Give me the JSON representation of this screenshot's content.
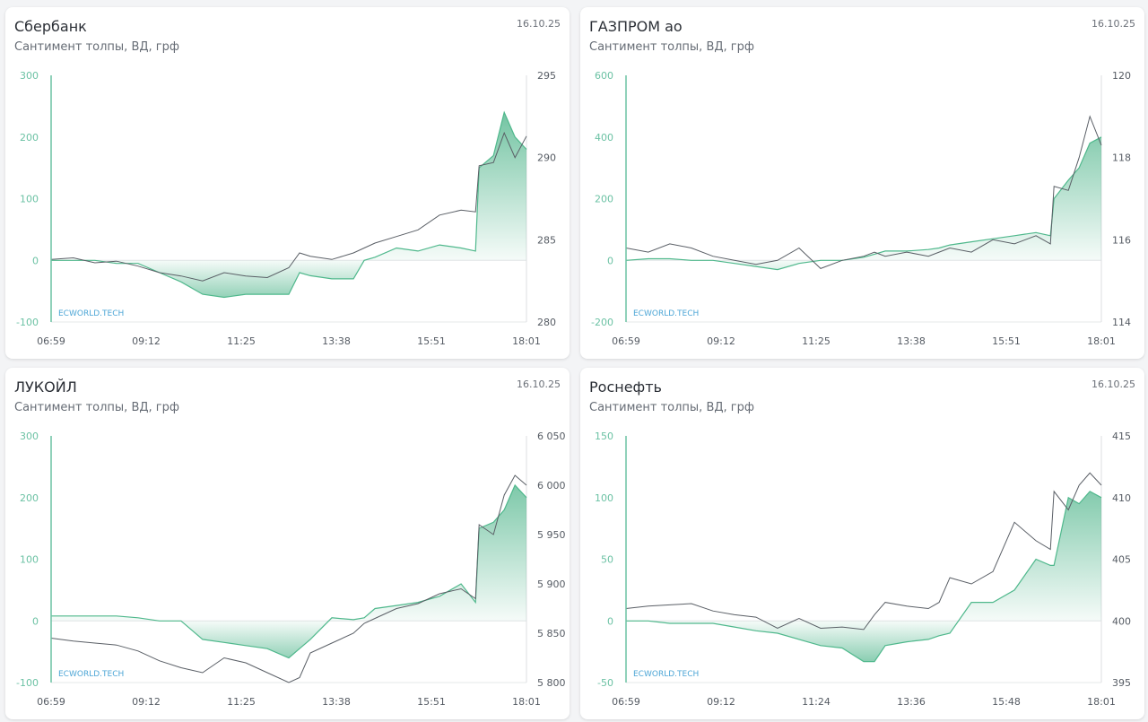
{
  "watermark": "ECWORLD.TECH",
  "colors": {
    "sentiment": "#4fb88c",
    "price": "#5a5f66",
    "left_ticks": "#6cc2a4",
    "right_ticks": "#555b63",
    "watermark": "#4da6d6"
  },
  "chart_data": [
    {
      "type": "line",
      "title": "Сбербанк",
      "subtitle": "Сантимент толпы, ВД, грф",
      "date": "16.10.25",
      "x_ticks": [
        "06:59",
        "09:12",
        "11:25",
        "13:38",
        "15:51",
        "18:01"
      ],
      "y_left": {
        "range": [
          -100,
          300
        ],
        "ticks": [
          "-100",
          "0",
          "100",
          "200",
          "300"
        ],
        "tick_values": [
          -100,
          0,
          100,
          200,
          300
        ]
      },
      "y_right": {
        "range": [
          280,
          295
        ],
        "ticks": [
          "280",
          "285",
          "290",
          "295"
        ],
        "tick_values": [
          280,
          285,
          290,
          295
        ]
      },
      "x": [
        "06:59",
        "07:30",
        "08:00",
        "08:30",
        "09:00",
        "09:30",
        "10:00",
        "10:30",
        "11:00",
        "11:30",
        "12:00",
        "12:30",
        "12:45",
        "13:00",
        "13:30",
        "14:00",
        "14:15",
        "14:30",
        "15:00",
        "15:30",
        "16:00",
        "16:30",
        "16:50",
        "16:55",
        "17:15",
        "17:30",
        "17:45",
        "18:01"
      ],
      "series": [
        {
          "name": "sentiment",
          "axis": "left",
          "values": [
            0,
            0,
            0,
            -5,
            -5,
            -20,
            -35,
            -55,
            -60,
            -55,
            -55,
            -55,
            -20,
            -25,
            -30,
            -30,
            0,
            5,
            20,
            15,
            25,
            20,
            15,
            150,
            170,
            240,
            200,
            180
          ]
        },
        {
          "name": "price",
          "axis": "right",
          "values": [
            283.8,
            283.9,
            283.6,
            283.7,
            283.4,
            283.0,
            282.8,
            282.5,
            283.0,
            282.8,
            282.7,
            283.3,
            284.2,
            284.0,
            283.8,
            284.2,
            284.5,
            284.8,
            285.2,
            285.6,
            286.5,
            286.8,
            286.7,
            289.5,
            289.7,
            291.5,
            290.0,
            291.3
          ]
        }
      ]
    },
    {
      "type": "line",
      "title": "ГАЗПРОМ ао",
      "subtitle": "Сантимент толпы, ВД, грф",
      "date": "16.10.25",
      "x_ticks": [
        "06:59",
        "09:12",
        "11:25",
        "13:38",
        "15:51",
        "18:01"
      ],
      "y_left": {
        "range": [
          -200,
          600
        ],
        "ticks": [
          "-200",
          "0",
          "200",
          "400",
          "600"
        ],
        "tick_values": [
          -200,
          0,
          200,
          400,
          600
        ]
      },
      "y_right": {
        "range": [
          114,
          120
        ],
        "ticks": [
          "114",
          "116",
          "118",
          "120"
        ],
        "tick_values": [
          114,
          116,
          118,
          120
        ]
      },
      "x": [
        "06:59",
        "07:30",
        "08:00",
        "08:30",
        "09:00",
        "09:30",
        "10:00",
        "10:30",
        "11:00",
        "11:30",
        "12:00",
        "12:30",
        "12:45",
        "13:00",
        "13:30",
        "14:00",
        "14:15",
        "14:30",
        "15:00",
        "15:30",
        "16:00",
        "16:30",
        "16:50",
        "16:55",
        "17:15",
        "17:30",
        "17:45",
        "18:01"
      ],
      "series": [
        {
          "name": "sentiment",
          "axis": "left",
          "values": [
            0,
            5,
            5,
            0,
            0,
            -10,
            -20,
            -30,
            -10,
            0,
            0,
            10,
            20,
            30,
            30,
            35,
            40,
            50,
            60,
            70,
            80,
            90,
            80,
            200,
            260,
            300,
            380,
            400
          ]
        },
        {
          "name": "price",
          "axis": "right",
          "values": [
            115.8,
            115.7,
            115.9,
            115.8,
            115.6,
            115.5,
            115.4,
            115.5,
            115.8,
            115.3,
            115.5,
            115.6,
            115.7,
            115.6,
            115.7,
            115.6,
            115.7,
            115.8,
            115.7,
            116.0,
            115.9,
            116.1,
            115.9,
            117.3,
            117.2,
            118.0,
            119.0,
            118.3
          ]
        }
      ]
    },
    {
      "type": "line",
      "title": "ЛУКОЙЛ",
      "subtitle": "Сантимент толпы, ВД, грф",
      "date": "16.10.25",
      "x_ticks": [
        "06:59",
        "09:12",
        "11:25",
        "13:38",
        "15:51",
        "18:01"
      ],
      "y_left": {
        "range": [
          -100,
          300
        ],
        "ticks": [
          "-100",
          "0",
          "100",
          "200",
          "300"
        ],
        "tick_values": [
          -100,
          0,
          100,
          200,
          300
        ]
      },
      "y_right": {
        "range": [
          5800,
          6050
        ],
        "ticks": [
          "5 800",
          "5 850",
          "5 900",
          "5 950",
          "6 000",
          "6 050"
        ],
        "tick_values": [
          5800,
          5850,
          5900,
          5950,
          6000,
          6050
        ]
      },
      "x": [
        "06:59",
        "07:30",
        "08:00",
        "08:30",
        "09:00",
        "09:30",
        "10:00",
        "10:30",
        "11:00",
        "11:30",
        "12:00",
        "12:30",
        "12:45",
        "13:00",
        "13:30",
        "14:00",
        "14:15",
        "14:30",
        "15:00",
        "15:30",
        "16:00",
        "16:30",
        "16:50",
        "16:55",
        "17:15",
        "17:30",
        "17:45",
        "18:01"
      ],
      "series": [
        {
          "name": "sentiment",
          "axis": "left",
          "values": [
            8,
            8,
            8,
            8,
            5,
            0,
            0,
            -30,
            -35,
            -40,
            -45,
            -60,
            -45,
            -30,
            5,
            2,
            5,
            20,
            25,
            30,
            40,
            60,
            30,
            150,
            160,
            180,
            220,
            200
          ]
        },
        {
          "name": "price",
          "axis": "right",
          "values": [
            5845,
            5842,
            5840,
            5838,
            5832,
            5822,
            5815,
            5810,
            5825,
            5820,
            5810,
            5800,
            5805,
            5830,
            5840,
            5850,
            5860,
            5865,
            5875,
            5880,
            5890,
            5895,
            5885,
            5960,
            5950,
            5990,
            6010,
            6000
          ]
        }
      ]
    },
    {
      "type": "line",
      "title": "Роснефть",
      "subtitle": "Сантимент толпы, ВД, грф",
      "date": "16.10.25",
      "x_ticks": [
        "06:59",
        "09:12",
        "11:24",
        "13:36",
        "15:48",
        "18:01"
      ],
      "y_left": {
        "range": [
          -50,
          150
        ],
        "ticks": [
          "-50",
          "0",
          "50",
          "100",
          "150"
        ],
        "tick_values": [
          -50,
          0,
          50,
          100,
          150
        ]
      },
      "y_right": {
        "range": [
          395,
          415
        ],
        "ticks": [
          "395",
          "400",
          "405",
          "410",
          "415"
        ],
        "tick_values": [
          395,
          400,
          405,
          410,
          415
        ]
      },
      "x": [
        "06:59",
        "07:30",
        "08:00",
        "08:30",
        "09:00",
        "09:30",
        "10:00",
        "10:30",
        "11:00",
        "11:30",
        "12:00",
        "12:30",
        "12:45",
        "13:00",
        "13:30",
        "14:00",
        "14:15",
        "14:30",
        "15:00",
        "15:30",
        "16:00",
        "16:30",
        "16:50",
        "16:55",
        "17:15",
        "17:30",
        "17:45",
        "18:01"
      ],
      "series": [
        {
          "name": "sentiment",
          "axis": "left",
          "values": [
            0,
            0,
            -2,
            -2,
            -2,
            -5,
            -8,
            -10,
            -15,
            -20,
            -22,
            -33,
            -33,
            -20,
            -17,
            -15,
            -12,
            -10,
            15,
            15,
            25,
            50,
            45,
            45,
            100,
            95,
            105,
            100
          ]
        },
        {
          "name": "price",
          "axis": "right",
          "values": [
            401,
            401.2,
            401.3,
            401.4,
            400.8,
            400.5,
            400.3,
            399.4,
            400.2,
            399.4,
            399.5,
            399.3,
            400.5,
            401.5,
            401.2,
            401,
            401.5,
            403.5,
            403,
            404,
            408,
            406.5,
            405.8,
            410.5,
            409,
            411,
            412,
            411
          ]
        }
      ]
    }
  ]
}
